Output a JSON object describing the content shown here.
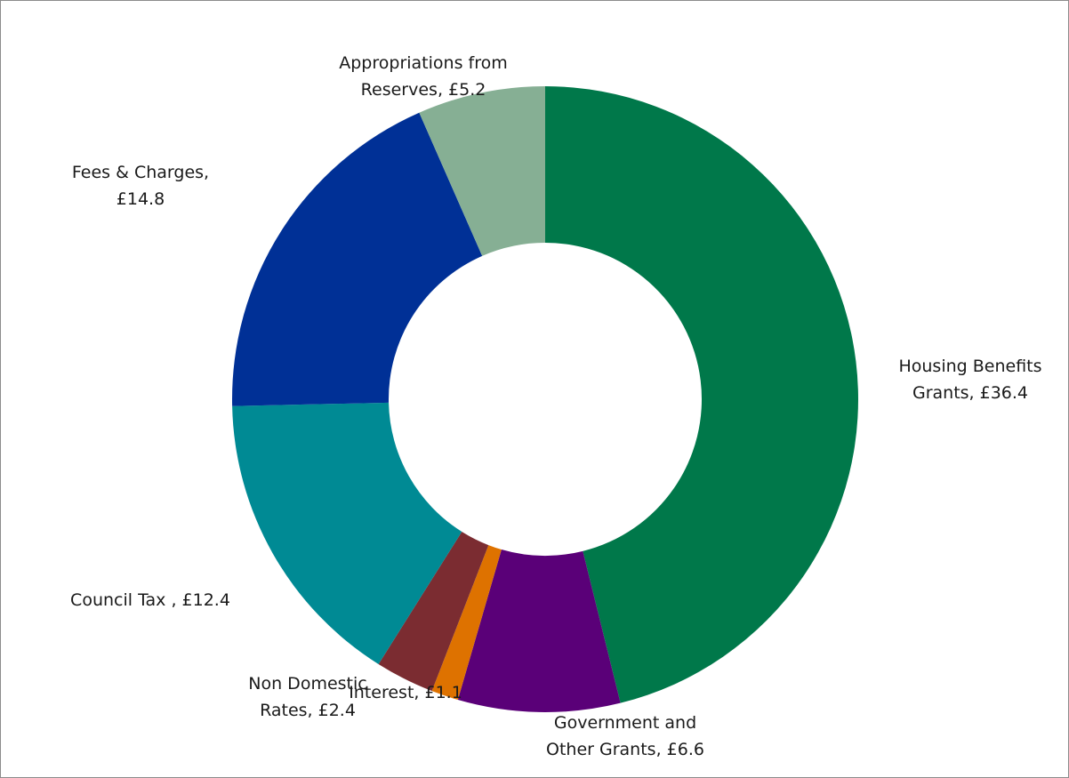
{
  "chart_data": {
    "type": "pie",
    "style": "donut",
    "unit": "£",
    "legend": "none",
    "slices": [
      {
        "label_line1": "Housing Benefits",
        "label_line2": "Grants,  £36.4",
        "value": 36.4,
        "color": "#00784A"
      },
      {
        "label_line1": "Government and",
        "label_line2": "Other Grants,  £6.6",
        "value": 6.6,
        "color": "#5A0078"
      },
      {
        "label_line1": "Interest,  £1.1",
        "label_line2": "",
        "value": 1.1,
        "color": "#DE7200"
      },
      {
        "label_line1": "Non Domestic",
        "label_line2": "Rates,  £2.4",
        "value": 2.4,
        "color": "#7B2C31"
      },
      {
        "label_line1": "Council Tax ,  £12.4",
        "label_line2": "",
        "value": 12.4,
        "color": "#008A94"
      },
      {
        "label_line1": "Fees & Charges,",
        "label_line2": "£14.8",
        "value": 14.8,
        "color": "#003096"
      },
      {
        "label_line1": "Appropriations from",
        "label_line2": "Reserves,  £5.2",
        "value": 5.2,
        "color": "#86AF94"
      }
    ]
  }
}
